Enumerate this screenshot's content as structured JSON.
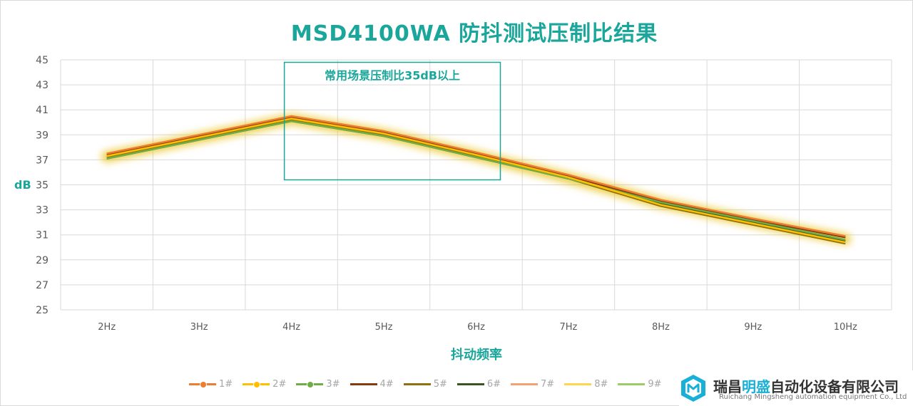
{
  "chart_data": {
    "type": "line",
    "title": "MSD4100WA 防抖测试压制比结果",
    "xlabel": "抖动频率",
    "ylabel": "dB",
    "categories": [
      "2Hz",
      "3Hz",
      "4Hz",
      "5Hz",
      "6Hz",
      "7Hz",
      "8Hz",
      "9Hz",
      "10Hz"
    ],
    "ylim": [
      25,
      45
    ],
    "yticks": [
      "25",
      "27",
      "29",
      "31",
      "33",
      "35",
      "37",
      "39",
      "41",
      "43",
      "45"
    ],
    "grid": true,
    "legend_position": "bottom",
    "annotation": {
      "text": "常用场景压制比35dB以上",
      "x_range": [
        "4Hz",
        "6Hz"
      ],
      "y_range": [
        35.4,
        44.8
      ]
    },
    "series": [
      {
        "name": "1#",
        "color": "#ed7d31",
        "marker": true,
        "values": [
          37.5,
          39.0,
          40.5,
          39.3,
          37.6,
          35.8,
          33.8,
          32.3,
          30.9
        ]
      },
      {
        "name": "2#",
        "color": "#ffc000",
        "marker": true,
        "values": [
          37.3,
          38.8,
          40.3,
          39.1,
          37.4,
          35.6,
          33.4,
          31.9,
          30.4
        ]
      },
      {
        "name": "3#",
        "color": "#70ad47",
        "marker": true,
        "values": [
          37.1,
          38.6,
          40.1,
          38.9,
          37.2,
          35.5,
          33.6,
          32.1,
          30.6
        ]
      },
      {
        "name": "4#",
        "color": "#843c0c",
        "marker": false,
        "values": [
          37.4,
          38.9,
          40.4,
          39.2,
          37.5,
          35.7,
          33.7,
          32.2,
          30.8
        ]
      },
      {
        "name": "5#",
        "color": "#8f7010",
        "marker": false,
        "values": [
          37.2,
          38.7,
          40.2,
          39.0,
          37.3,
          35.5,
          33.3,
          31.8,
          30.3
        ]
      },
      {
        "name": "6#",
        "color": "#375623",
        "marker": false,
        "values": [
          37.1,
          38.6,
          40.1,
          38.9,
          37.2,
          35.5,
          33.5,
          32.0,
          30.5
        ]
      },
      {
        "name": "7#",
        "color": "#f4a171",
        "marker": false,
        "values": [
          37.5,
          39.0,
          40.5,
          39.3,
          37.6,
          35.8,
          33.8,
          32.3,
          30.9
        ]
      },
      {
        "name": "8#",
        "color": "#ffd54f",
        "marker": false,
        "values": [
          37.3,
          38.8,
          40.3,
          39.1,
          37.4,
          35.6,
          33.4,
          31.9,
          30.4
        ]
      },
      {
        "name": "9#",
        "color": "#9ccc65",
        "marker": false,
        "values": [
          37.1,
          38.6,
          40.1,
          38.9,
          37.2,
          35.5,
          33.6,
          32.1,
          30.6
        ]
      }
    ]
  },
  "logo": {
    "name_part1": "瑞昌",
    "name_highlight": "明盛",
    "name_part2": "自动化设备有限公司",
    "subtitle": "Ruichang Mingsheng automation equipment Co., Ltd",
    "icon": "cube-logo-icon"
  }
}
